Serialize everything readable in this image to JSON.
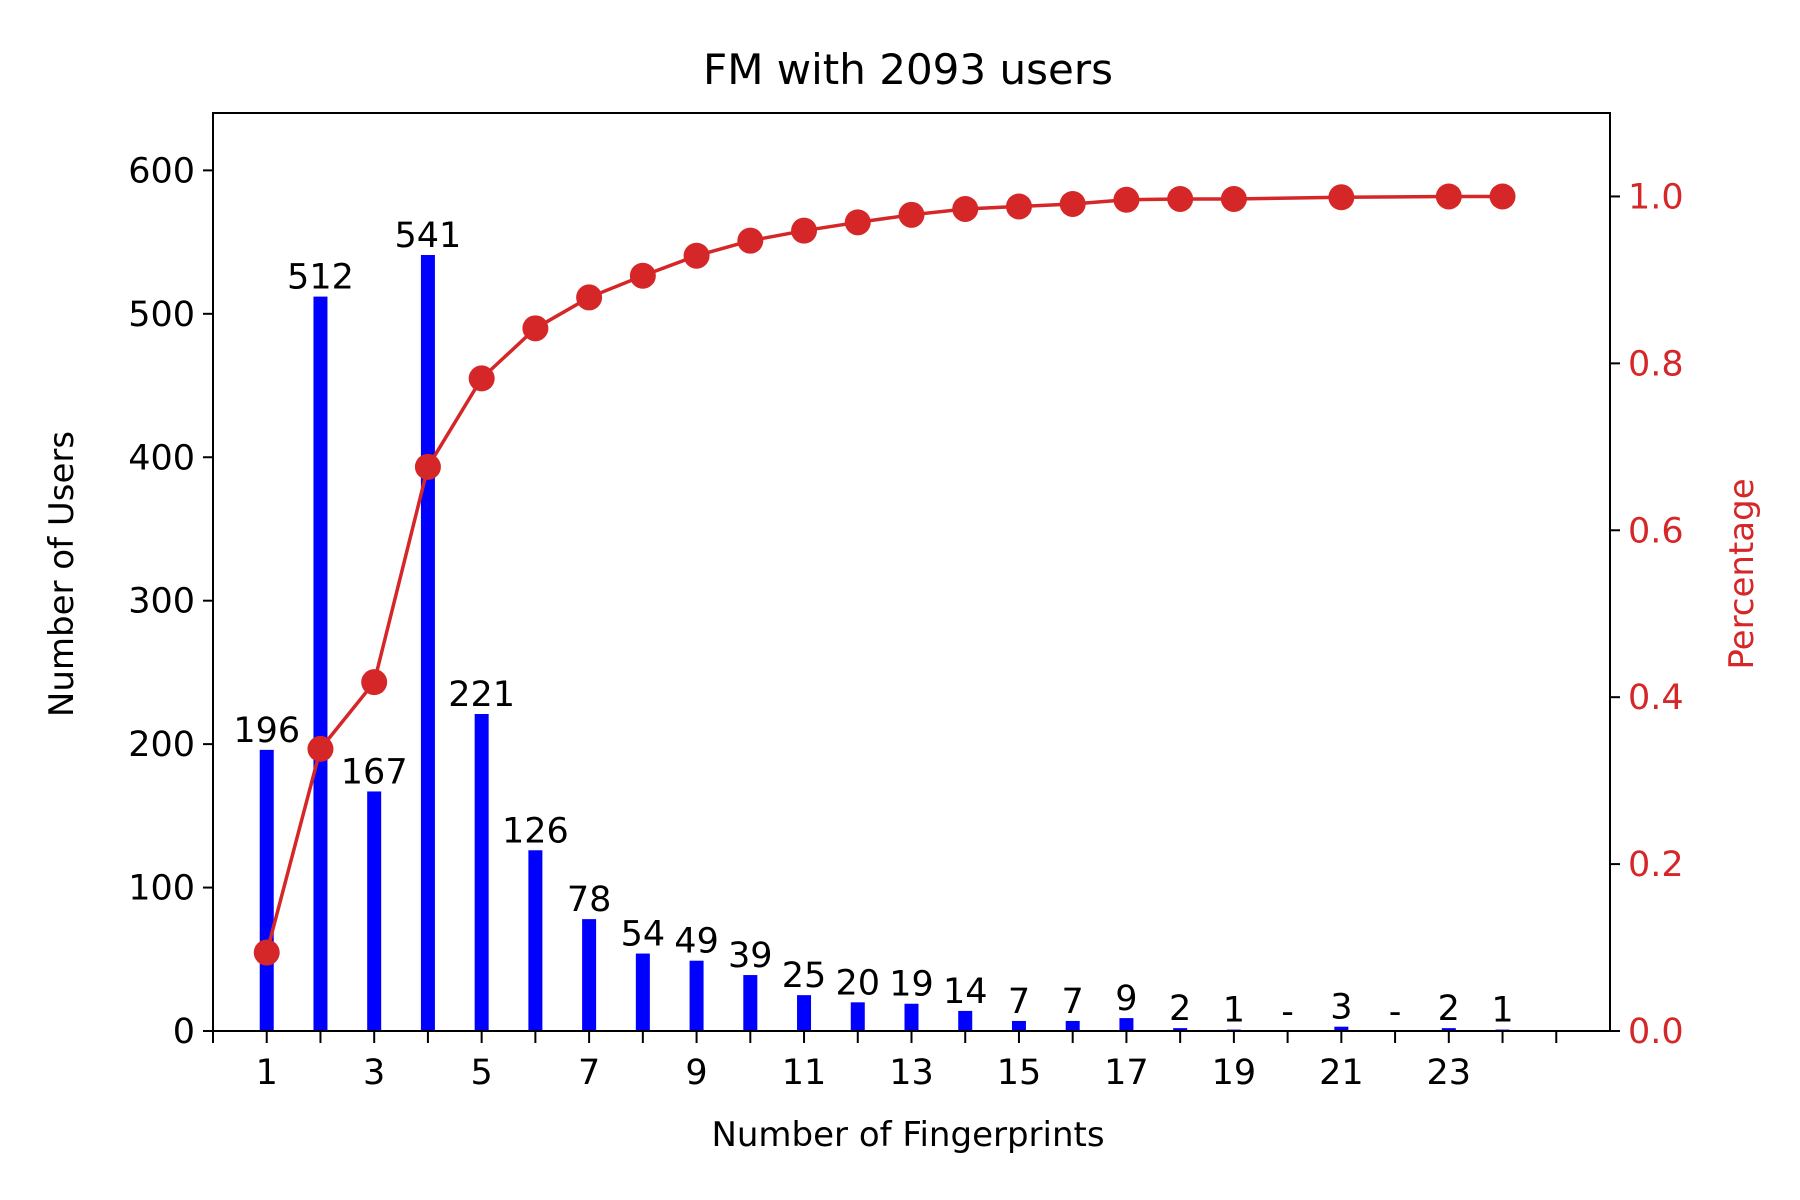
{
  "chart_data": {
    "type": "bar",
    "title": "FM with 2093 users",
    "xlabel": "Number of Fingerprints",
    "ylabel": "Number of Users",
    "y2label": "Percentage",
    "categories": [
      1,
      2,
      3,
      4,
      5,
      6,
      7,
      8,
      9,
      10,
      11,
      12,
      13,
      14,
      15,
      16,
      17,
      18,
      19,
      20,
      21,
      22,
      23,
      24
    ],
    "x_tick_labels": [
      "1",
      "3",
      "5",
      "7",
      "9",
      "11",
      "13",
      "15",
      "17",
      "19",
      "21",
      "23"
    ],
    "x_tick_values": [
      1,
      3,
      5,
      7,
      9,
      11,
      13,
      15,
      17,
      19,
      21,
      23
    ],
    "ylim": [
      0,
      640
    ],
    "y_ticks": [
      0,
      100,
      200,
      300,
      400,
      500,
      600
    ],
    "y2lim": [
      0,
      1.1
    ],
    "y2_ticks": [
      0.0,
      0.2,
      0.4,
      0.6,
      0.8,
      1.0
    ],
    "y2_tick_labels": [
      "0.0",
      "0.2",
      "0.4",
      "0.6",
      "0.8",
      "1.0"
    ],
    "bars": {
      "values": [
        196,
        512,
        167,
        541,
        221,
        126,
        78,
        54,
        49,
        39,
        25,
        20,
        19,
        14,
        7,
        7,
        9,
        2,
        1,
        0,
        3,
        0,
        2,
        1
      ],
      "labels": [
        "196",
        "512",
        "167",
        "541",
        "221",
        "126",
        "78",
        "54",
        "49",
        "39",
        "25",
        "20",
        "19",
        "14",
        "7",
        "7",
        "9",
        "2",
        "1",
        "-",
        "3",
        "-",
        "2",
        "1"
      ],
      "color": "#0000ff"
    },
    "cumulative": {
      "x": [
        1,
        2,
        3,
        4,
        5,
        6,
        7,
        8,
        9,
        10,
        11,
        12,
        13,
        14,
        15,
        16,
        17,
        18,
        19,
        21,
        23,
        24
      ],
      "values": [
        0.094,
        0.338,
        0.418,
        0.676,
        0.782,
        0.842,
        0.879,
        0.905,
        0.929,
        0.947,
        0.959,
        0.969,
        0.978,
        0.985,
        0.988,
        0.991,
        0.996,
        0.997,
        0.997,
        0.999,
        1.0,
        1.0
      ],
      "color": "#d62728"
    },
    "grid": false
  }
}
